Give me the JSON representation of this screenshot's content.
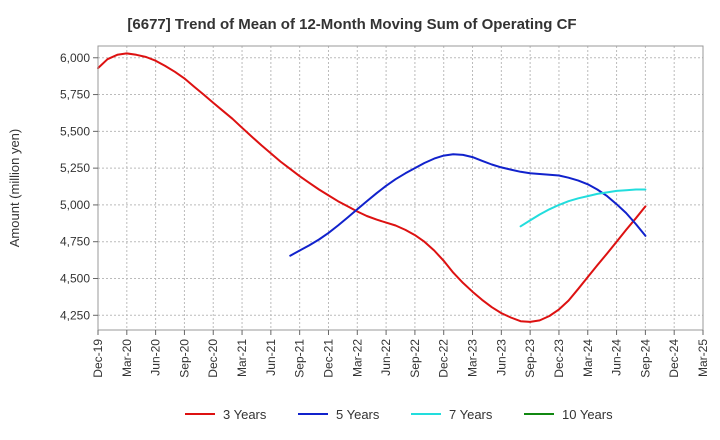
{
  "chart_data": {
    "type": "line",
    "title": "[6677]  Trend of Mean of 12-Month Moving Sum of Operating CF",
    "xlabel": "",
    "ylabel": "Amount (million yen)",
    "ylim": [
      4150,
      6080
    ],
    "yticks": [
      4250,
      4500,
      4750,
      5000,
      5250,
      5500,
      5750,
      6000
    ],
    "ytick_labels": [
      "4,250",
      "4,500",
      "4,750",
      "5,000",
      "5,250",
      "5,500",
      "5,750",
      "6,000"
    ],
    "x_categories": [
      "Dec-19",
      "Mar-20",
      "Jun-20",
      "Sep-20",
      "Dec-20",
      "Mar-21",
      "Jun-21",
      "Sep-21",
      "Dec-21",
      "Mar-22",
      "Jun-22",
      "Sep-22",
      "Dec-22",
      "Mar-23",
      "Jun-23",
      "Sep-23",
      "Dec-23",
      "Mar-24",
      "Jun-24",
      "Sep-24",
      "Dec-24",
      "Mar-25"
    ],
    "grid": true,
    "legend_position": "bottom",
    "series": [
      {
        "name": "3 Years",
        "color": "#dd1111",
        "x": [
          0,
          0.33,
          0.67,
          1,
          1.33,
          1.67,
          2,
          2.33,
          2.67,
          3,
          3.33,
          3.67,
          4,
          4.33,
          4.67,
          5,
          5.33,
          5.67,
          6,
          6.33,
          6.67,
          7,
          7.33,
          7.67,
          8,
          8.33,
          8.67,
          9,
          9.33,
          9.67,
          10,
          10.33,
          10.67,
          11,
          11.33,
          11.67,
          12,
          12.33,
          12.67,
          13,
          13.33,
          13.67,
          14,
          14.33,
          14.67,
          15,
          15.33,
          15.67,
          16,
          16.33,
          16.67,
          17,
          17.33,
          17.67,
          18,
          18.33,
          18.67,
          19
        ],
        "values": [
          5930,
          5990,
          6020,
          6030,
          6020,
          6005,
          5980,
          5945,
          5905,
          5860,
          5805,
          5750,
          5695,
          5640,
          5585,
          5525,
          5465,
          5405,
          5350,
          5295,
          5245,
          5195,
          5150,
          5105,
          5065,
          5025,
          4990,
          4955,
          4925,
          4900,
          4880,
          4860,
          4830,
          4795,
          4750,
          4690,
          4620,
          4540,
          4470,
          4410,
          4355,
          4305,
          4265,
          4235,
          4210,
          4205,
          4215,
          4245,
          4290,
          4350,
          4430,
          4510,
          4590,
          4670,
          4750,
          4830,
          4910,
          4990
        ]
      },
      {
        "name": "5 Years",
        "color": "#1122cc",
        "x": [
          6.67,
          7,
          7.33,
          7.67,
          8,
          8.33,
          8.67,
          9,
          9.33,
          9.67,
          10,
          10.33,
          10.67,
          11,
          11.33,
          11.67,
          12,
          12.33,
          12.67,
          13,
          13.33,
          13.67,
          14,
          14.33,
          14.67,
          15,
          15.33,
          15.67,
          16,
          16.33,
          16.67,
          17,
          17.33,
          17.67,
          18,
          18.33,
          18.67,
          19
        ],
        "values": [
          4655,
          4690,
          4725,
          4765,
          4810,
          4860,
          4915,
          4970,
          5025,
          5080,
          5130,
          5175,
          5215,
          5250,
          5285,
          5315,
          5335,
          5345,
          5340,
          5325,
          5300,
          5275,
          5255,
          5240,
          5225,
          5215,
          5210,
          5205,
          5200,
          5185,
          5165,
          5140,
          5105,
          5060,
          5005,
          4945,
          4870,
          4790
        ]
      },
      {
        "name": "7 Years",
        "color": "#22dddd",
        "x": [
          14.67,
          15,
          15.33,
          15.67,
          16,
          16.33,
          16.67,
          17,
          17.33,
          17.67,
          18,
          18.33,
          18.67,
          19
        ],
        "values": [
          4855,
          4895,
          4935,
          4970,
          5000,
          5025,
          5045,
          5060,
          5075,
          5085,
          5095,
          5100,
          5105,
          5105
        ]
      },
      {
        "name": "10 Years",
        "color": "#118811",
        "x": [],
        "values": []
      }
    ]
  }
}
